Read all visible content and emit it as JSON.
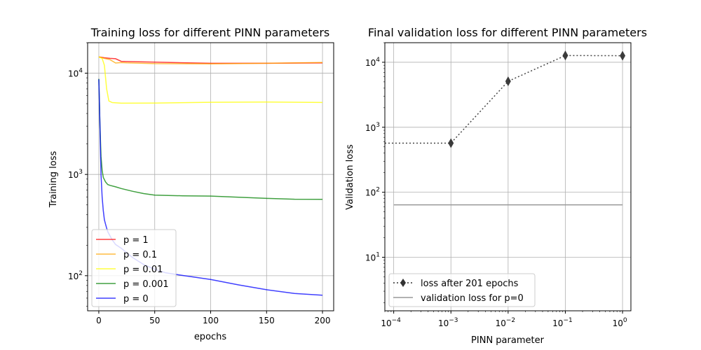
{
  "chart_data": [
    {
      "type": "line",
      "title": "Training loss for different PINN parameters",
      "xlabel": "epochs",
      "ylabel": "Training loss",
      "xlim": [
        -10,
        210
      ],
      "ylim": [
        45,
        20000
      ],
      "yscale": "log",
      "grid": true,
      "legend_position": "lower-left",
      "x_ticks": [
        "0",
        "50",
        "100",
        "150",
        "200"
      ],
      "y_ticks": [
        {
          "base": "10",
          "exp": "2"
        },
        {
          "base": "10",
          "exp": "3"
        },
        {
          "base": "10",
          "exp": "4"
        }
      ],
      "series": [
        {
          "name": "p = 1",
          "color": "#ff0000",
          "x": [
            0,
            5,
            10,
            15,
            20,
            25,
            50,
            100,
            150,
            200
          ],
          "values": [
            14500,
            14200,
            14000,
            13900,
            12900,
            12800,
            12800,
            12700,
            12750,
            12700
          ]
        },
        {
          "name": "p = 0.1",
          "color": "#ffa500",
          "x": [
            0,
            5,
            10,
            15,
            20,
            25,
            50,
            100,
            150,
            200
          ],
          "values": [
            14400,
            14000,
            13600,
            12600,
            12500,
            12600,
            12600,
            12600,
            12600,
            12600
          ]
        },
        {
          "name": "p = 0.01",
          "color": "#ffff00",
          "x": [
            0,
            3,
            5,
            7,
            9,
            12,
            20,
            50,
            100,
            150,
            200
          ],
          "values": [
            14500,
            14000,
            12000,
            7000,
            5300,
            5200,
            5150,
            5100,
            5100,
            5100,
            5100
          ]
        },
        {
          "name": "p = 0.001",
          "color": "#008000",
          "x": [
            0,
            1,
            2,
            3,
            4,
            6,
            8,
            10,
            15,
            20,
            30,
            40,
            50,
            75,
            100,
            125,
            150,
            175,
            200
          ],
          "values": [
            8800,
            3000,
            1500,
            1100,
            950,
            860,
            800,
            770,
            740,
            720,
            690,
            660,
            630,
            610,
            600,
            590,
            585,
            580,
            575
          ]
        },
        {
          "name": "p = 0",
          "color": "#0000ff",
          "x": [
            0,
            1,
            2,
            3,
            4,
            5,
            6,
            7,
            8,
            10,
            12,
            15,
            20,
            25,
            30,
            40,
            50,
            60,
            75,
            100,
            125,
            150,
            175,
            200
          ],
          "values": [
            8700,
            3000,
            1000,
            600,
            450,
            360,
            320,
            290,
            270,
            250,
            230,
            205,
            185,
            165,
            150,
            130,
            118,
            108,
            100,
            90,
            80,
            73,
            68,
            65
          ]
        }
      ]
    },
    {
      "type": "line",
      "title": "Final validation loss for different PINN parameters",
      "xlabel": "PINN parameter",
      "ylabel": "Validation loss",
      "xscale": "log",
      "yscale": "log",
      "xlim": [
        7e-05,
        1.4
      ],
      "ylim": [
        1.5,
        20000
      ],
      "grid": true,
      "legend_position": "lower-left",
      "x_ticks": [
        {
          "base": "10",
          "exp": "−4"
        },
        {
          "base": "10",
          "exp": "−3"
        },
        {
          "base": "10",
          "exp": "−2"
        },
        {
          "base": "10",
          "exp": "−1"
        },
        {
          "base": "10",
          "exp": "0"
        }
      ],
      "y_ticks": [
        {
          "base": "10",
          "exp": "1"
        },
        {
          "base": "10",
          "exp": "2"
        },
        {
          "base": "10",
          "exp": "3"
        },
        {
          "base": "10",
          "exp": "4"
        }
      ],
      "series": [
        {
          "name": "loss after 201 epochs",
          "color": "#333333",
          "style": "dotted",
          "marker": "diamond",
          "x": [
            0.001,
            0.01,
            0.1,
            1
          ],
          "values": [
            570,
            5100,
            12700,
            12600
          ],
          "extend_left_value": 570
        },
        {
          "name": "validation loss for p=0",
          "color": "#999999",
          "style": "solid",
          "x": [
            0.0001,
            1
          ],
          "values": [
            64,
            64
          ]
        }
      ]
    }
  ]
}
